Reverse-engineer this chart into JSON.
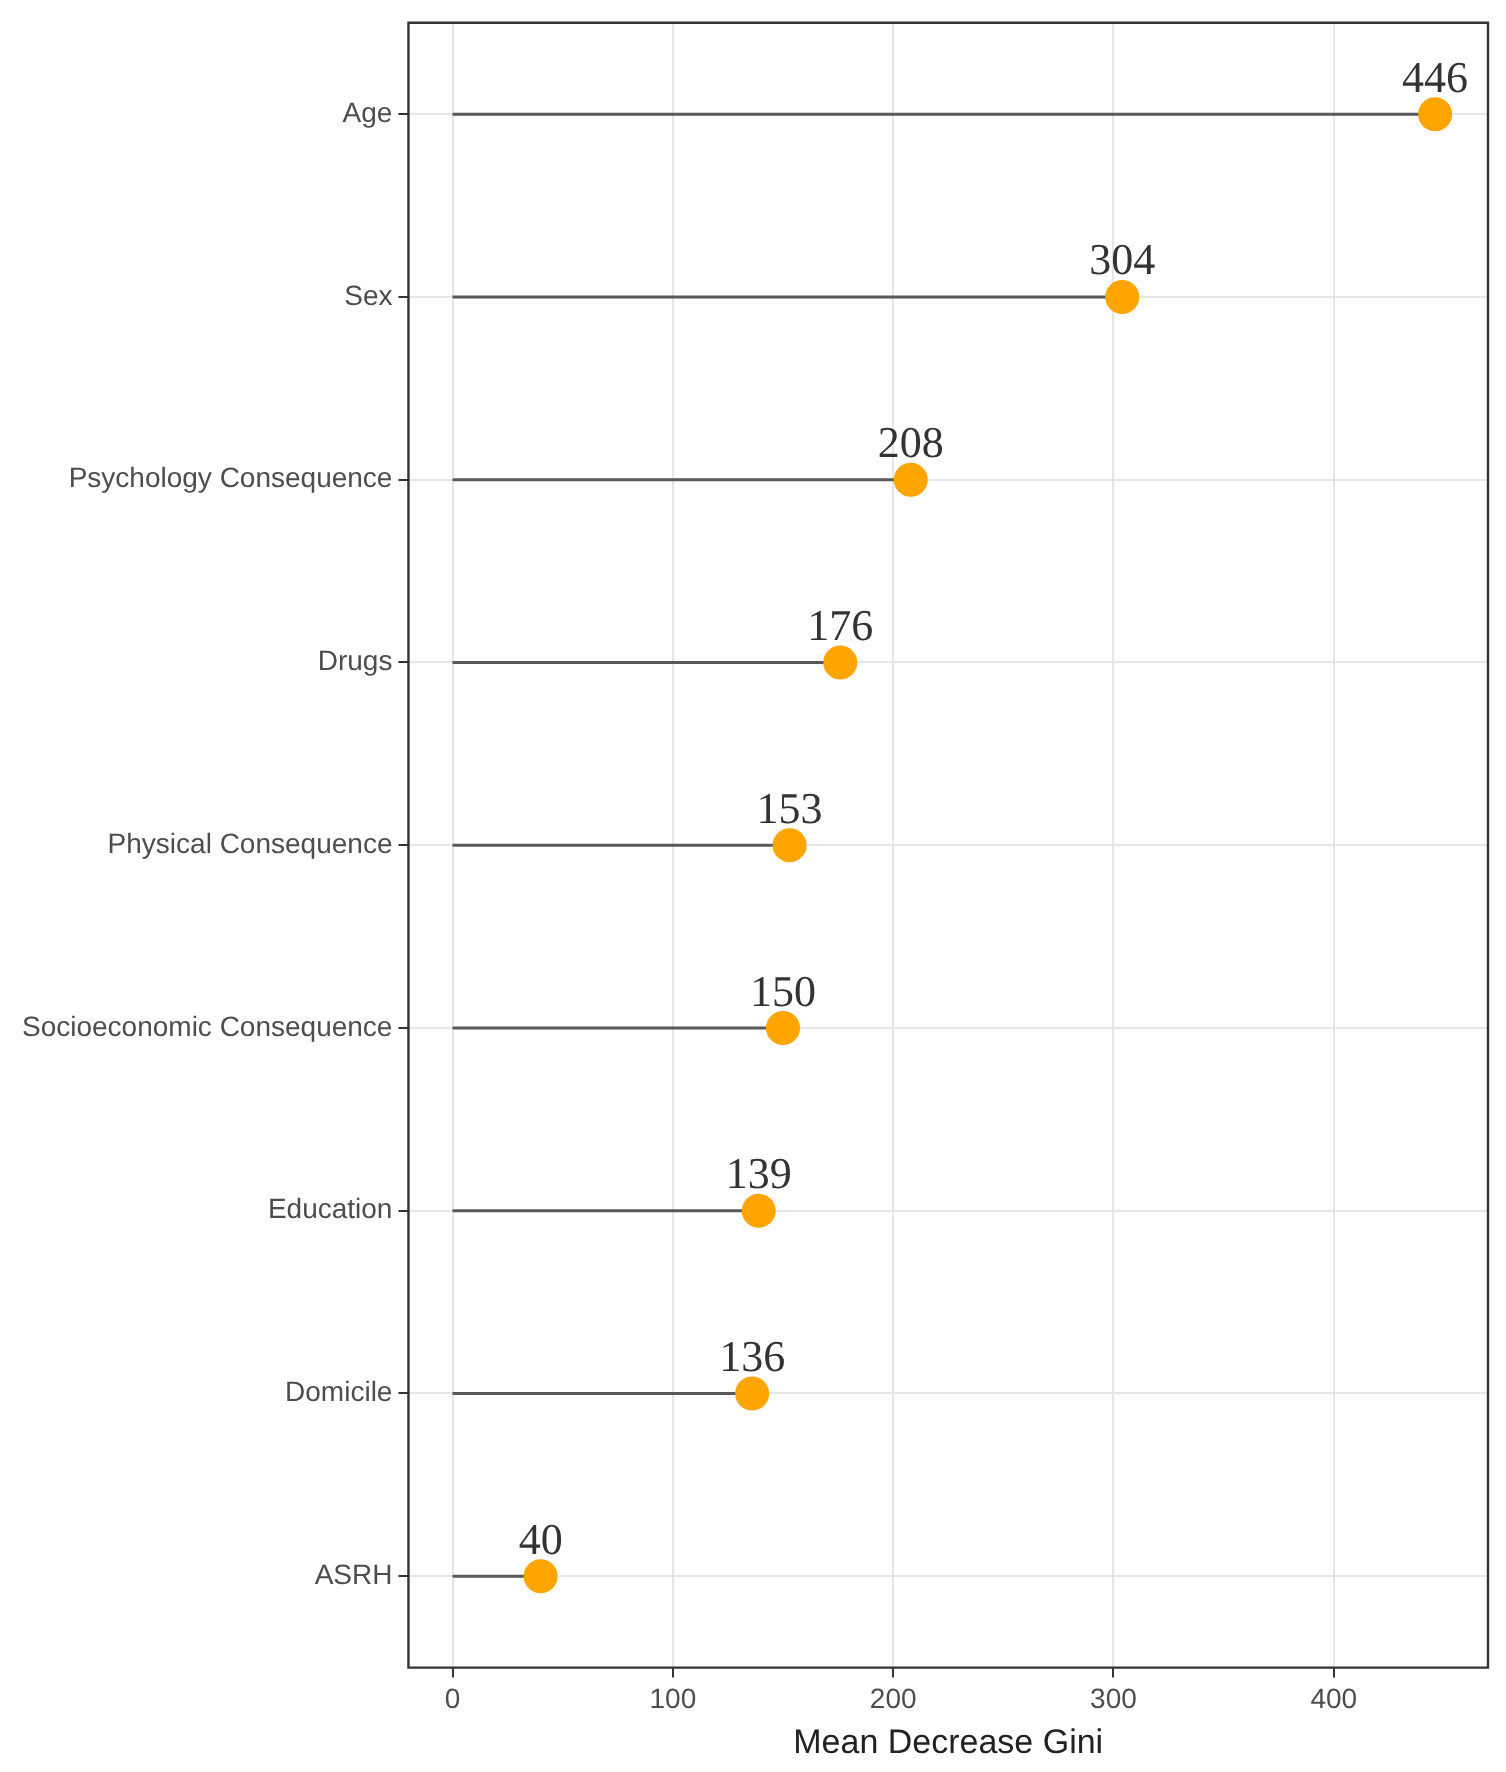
{
  "chart_data": {
    "type": "lollipop",
    "orientation": "horizontal",
    "xlabel": "Mean Decrease Gini",
    "categories": [
      "Age",
      "Sex",
      "Psychology Consequence",
      "Drugs",
      "Physical Consequence",
      "Socioeconomic Consequence",
      "Education",
      "Domicile",
      "ASRH"
    ],
    "series": [
      {
        "color": "#ffa500",
        "values": [
          446,
          304,
          208,
          176,
          153,
          150,
          139,
          136,
          40
        ]
      }
    ],
    "xlim": [
      -20,
      470
    ],
    "xticks": [
      0,
      100,
      200,
      300,
      400
    ],
    "grid": true,
    "data_labels": true,
    "marker": "circle",
    "legend": false
  }
}
